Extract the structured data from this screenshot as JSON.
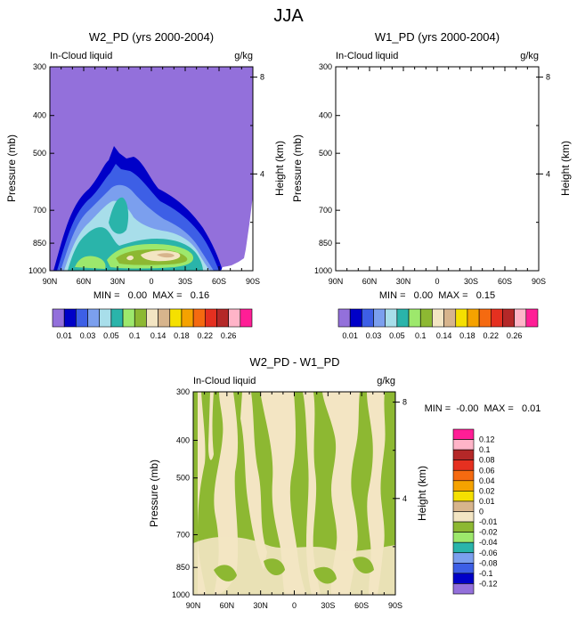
{
  "figure": {
    "title": "JJA"
  },
  "palette": {
    "background": "#9370DB",
    "diff_background": "#8DB832",
    "diff_zero": "#F3E5C3",
    "levels_colors": [
      "#9370DB",
      "#0000C8",
      "#3D5FE6",
      "#7B9FEE",
      "#A8DEEA",
      "#2AB4AA",
      "#9DE86C",
      "#8DB832",
      "#F3E5C3",
      "#D7B48C",
      "#F5E000",
      "#F5A200",
      "#F56A10",
      "#E53020",
      "#B42828",
      "#FFB4C8",
      "#FF1E96"
    ],
    "diff_colors_top_to_bottom": [
      "#FF1E96",
      "#FFB4C8",
      "#B42828",
      "#E53020",
      "#F56A10",
      "#F5A200",
      "#F5E000",
      "#D7B48C",
      "#F3E5C3",
      "#8DB832",
      "#9DE86C",
      "#2AB4AA",
      "#7B9FEE",
      "#3D5FE6",
      "#0000C8",
      "#9370DB"
    ]
  },
  "chart_data": [
    {
      "type": "heatmap",
      "title": "W2_PD (yrs 2000-2004)",
      "left_label": "In-Cloud liquid",
      "units": "g/kg",
      "ylabel": "Pressure (mb)",
      "y2label": "Height (km)",
      "x_ticks": [
        "90N",
        "60N",
        "30N",
        "0",
        "30S",
        "60S",
        "90S"
      ],
      "y_ticks": [
        "300",
        "400",
        "500",
        "700",
        "850",
        "1000"
      ],
      "y2_ticks": [
        "8",
        "4"
      ],
      "stats": "MIN =   0.00  MAX =   0.16",
      "min": 0.0,
      "max": 0.16,
      "colorbar_levels": [
        0.01,
        0.02,
        0.03,
        0.04,
        0.05,
        0.06,
        0.08,
        0.1,
        0.12,
        0.14,
        0.16,
        0.18,
        0.2,
        0.22,
        0.24,
        0.26
      ],
      "colorbar_labels": [
        "0.01",
        "0.03",
        "0.05",
        "0.1",
        "0.14",
        "0.18",
        "0.22",
        "0.26"
      ]
    },
    {
      "type": "heatmap",
      "title": "W1_PD (yrs 2000-2004)",
      "left_label": "In-Cloud liquid",
      "units": "g/kg",
      "ylabel": "Pressure (mb)",
      "y2label": "Height (km)",
      "x_ticks": [
        "90N",
        "60N",
        "30N",
        "0",
        "30S",
        "60S",
        "90S"
      ],
      "y_ticks": [
        "300",
        "400",
        "500",
        "700",
        "850",
        "1000"
      ],
      "y2_ticks": [
        "8",
        "4"
      ],
      "stats": "MIN =   0.00  MAX =   0.15",
      "min": 0.0,
      "max": 0.15,
      "colorbar_levels": [
        0.01,
        0.02,
        0.03,
        0.04,
        0.05,
        0.06,
        0.08,
        0.1,
        0.12,
        0.14,
        0.16,
        0.18,
        0.2,
        0.22,
        0.24,
        0.26
      ],
      "colorbar_labels": [
        "0.01",
        "0.03",
        "0.05",
        "0.1",
        "0.14",
        "0.18",
        "0.22",
        "0.26"
      ]
    },
    {
      "type": "heatmap",
      "title": "W2_PD - W1_PD",
      "left_label": "In-Cloud liquid",
      "units": "g/kg",
      "ylabel": "Pressure (mb)",
      "y2label": "Height (km)",
      "x_ticks": [
        "90N",
        "60N",
        "30N",
        "0",
        "30S",
        "60S",
        "90S"
      ],
      "y_ticks": [
        "300",
        "400",
        "500",
        "700",
        "850",
        "1000"
      ],
      "y2_ticks": [
        "8",
        "4"
      ],
      "stats": "MIN =  -0.00  MAX =   0.01",
      "min": -0.0,
      "max": 0.01,
      "colorbar_labels": [
        "0.12",
        "0.1",
        "0.08",
        "0.06",
        "0.04",
        "0.02",
        "0.01",
        "0",
        "-0.01",
        "-0.02",
        "-0.04",
        "-0.06",
        "-0.08",
        "-0.1",
        "-0.12"
      ]
    }
  ]
}
